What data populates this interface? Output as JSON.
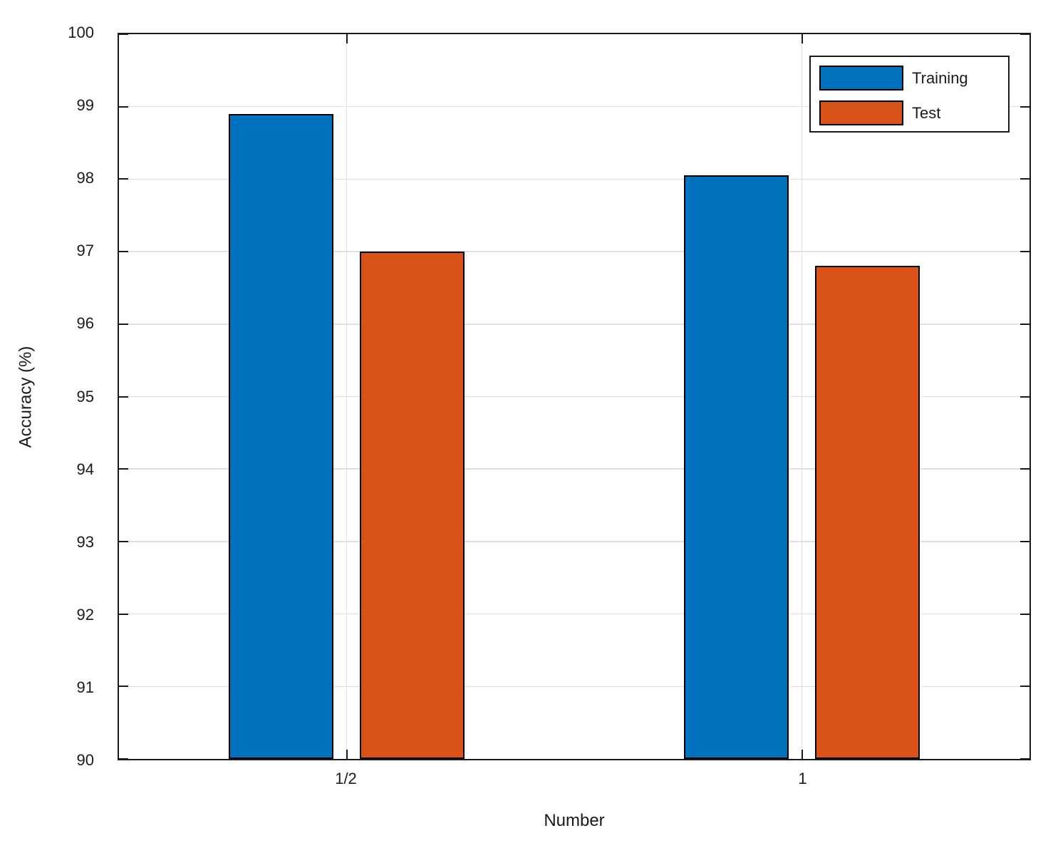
{
  "chart_data": {
    "type": "bar",
    "title": "",
    "xlabel": "Number",
    "ylabel": "Accuracy (%)",
    "categories": [
      "1/2",
      "1"
    ],
    "series": [
      {
        "name": "Training",
        "color": "#0072BD",
        "values": [
          98.9,
          98.05
        ]
      },
      {
        "name": "Test",
        "color": "#D95319",
        "values": [
          97.0,
          96.8
        ]
      }
    ],
    "ylim": [
      90,
      100
    ],
    "ytick_step": 1,
    "ytick_labels": [
      "90",
      "91",
      "92",
      "93",
      "94",
      "95",
      "96",
      "97",
      "98",
      "99",
      "100"
    ],
    "grid": true,
    "legend_position": "top-right",
    "legend_entries": [
      "Training",
      "Test"
    ]
  },
  "style": {
    "background_color": "#FFFFFF",
    "axis_color": "#1a1a1a",
    "grid_color": "#E0E0E0",
    "bar_edge_color": "#000000",
    "text_color": "#1a1a1a"
  }
}
